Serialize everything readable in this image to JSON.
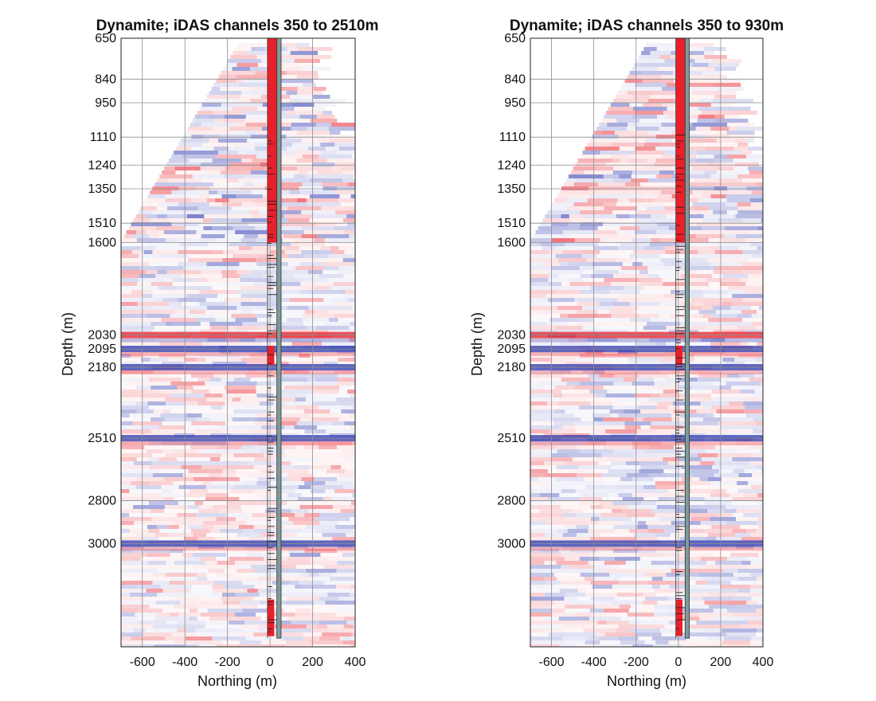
{
  "chart_data": [
    {
      "type": "heatmap",
      "title": "Dynamite; iDAS channels 350 to 2510m",
      "xlabel": "Northing (m)",
      "ylabel": "Depth (m)",
      "xlim": [
        -700,
        400
      ],
      "ylim": [
        650,
        3480
      ],
      "x_ticks": [
        -600,
        -400,
        -200,
        0,
        200,
        400
      ],
      "x_tick_labels": [
        "-600",
        "-400",
        "-200",
        "0",
        "200",
        "400"
      ],
      "y_ticks": [
        650,
        840,
        950,
        1110,
        1240,
        1350,
        1510,
        1600,
        2030,
        2095,
        2180,
        2510,
        2800,
        3000
      ],
      "y_tick_labels": [
        "650",
        "840",
        "950",
        "1110",
        "1240",
        "1350",
        "1510",
        "1600",
        "2030",
        "2095",
        "2180",
        "2510",
        "2800",
        "3000"
      ],
      "grid": true,
      "colors": {
        "positive": "#e8202a",
        "negative": "#2d39b0",
        "well": "#7f9a9a",
        "frame": "#222222"
      },
      "dense_reflectors": [
        {
          "depth": 2030,
          "polarity": 1
        },
        {
          "depth": 2095,
          "polarity": -1
        },
        {
          "depth": 2180,
          "polarity": -1
        },
        {
          "depth": 2510,
          "polarity": -1
        },
        {
          "depth": 3000,
          "polarity": -1
        }
      ]
    },
    {
      "type": "heatmap",
      "title": "Dynamite; iDAS channels 350 to 930m",
      "xlabel": "Northing (m)",
      "ylabel": "Depth (m)",
      "xlim": [
        -700,
        400
      ],
      "ylim": [
        650,
        3480
      ],
      "x_ticks": [
        -600,
        -400,
        -200,
        0,
        200,
        400
      ],
      "x_tick_labels": [
        "-600",
        "-400",
        "-200",
        "0",
        "200",
        "400"
      ],
      "y_ticks": [
        650,
        840,
        950,
        1110,
        1240,
        1350,
        1510,
        1600,
        2030,
        2095,
        2180,
        2510,
        2800,
        3000
      ],
      "y_tick_labels": [
        "650",
        "840",
        "950",
        "1110",
        "1240",
        "1350",
        "1510",
        "1600",
        "2030",
        "2095",
        "2180",
        "2510",
        "2800",
        "3000"
      ],
      "grid": true,
      "colors": {
        "positive": "#e8202a",
        "negative": "#2d39b0",
        "well": "#7f9a9a",
        "frame": "#222222"
      },
      "dense_reflectors": [
        {
          "depth": 2030,
          "polarity": 1
        },
        {
          "depth": 2095,
          "polarity": -1
        },
        {
          "depth": 2180,
          "polarity": -1
        },
        {
          "depth": 2510,
          "polarity": -1
        },
        {
          "depth": 3000,
          "polarity": -1
        }
      ]
    }
  ]
}
